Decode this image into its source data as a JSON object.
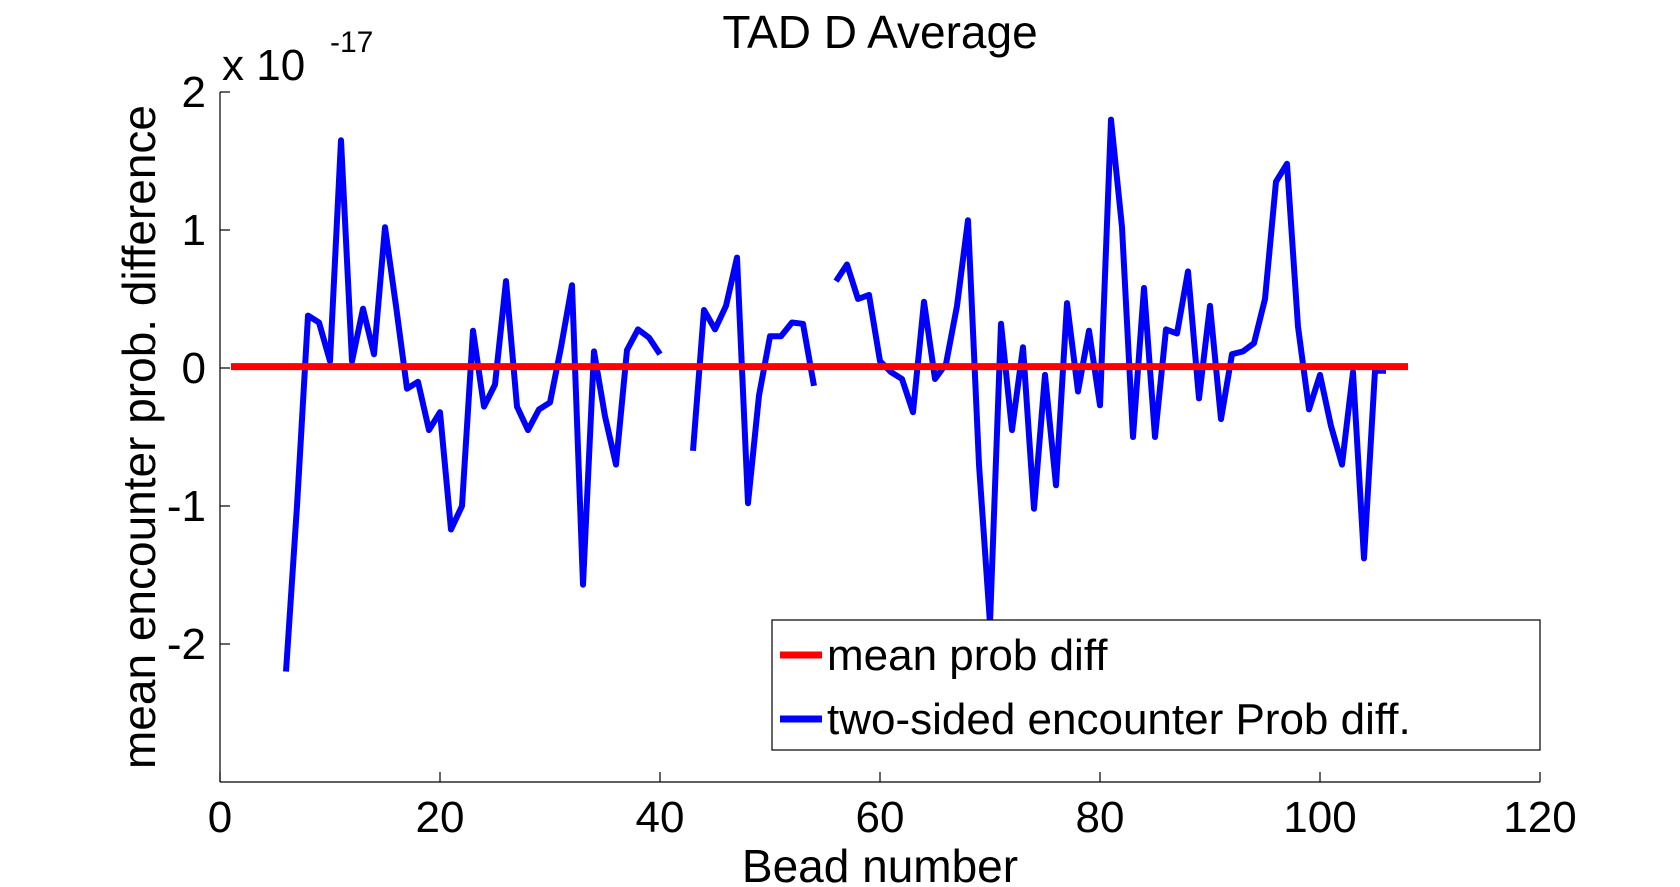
{
  "chart_data": {
    "type": "line",
    "title": "TAD D Average",
    "xlabel": "Bead number",
    "ylabel": "mean encounter prob. difference",
    "y_exponent_label": "x 10",
    "y_exponent_power": "-17",
    "xlim": [
      0,
      120
    ],
    "ylim": [
      -3,
      2
    ],
    "x_ticks": [
      0,
      20,
      40,
      60,
      80,
      100,
      120
    ],
    "x_tick_labels": [
      "0",
      "20",
      "40",
      "60",
      "80",
      "100",
      "120"
    ],
    "y_ticks": [
      2,
      1,
      0,
      -1,
      -2
    ],
    "y_tick_labels": [
      "2",
      "1",
      "0",
      "-1",
      "-2"
    ],
    "grid": false,
    "legend_position": "bottom-right",
    "series": [
      {
        "name": "mean prob diff",
        "color": "#ff0000",
        "x": [
          1,
          108
        ],
        "y": [
          0.01,
          0.01
        ]
      },
      {
        "name": "two-sided encounter Prob diff.",
        "color": "#0000ff",
        "x": [
          6,
          7,
          8,
          9,
          10,
          11,
          12,
          13,
          14,
          15,
          16,
          17,
          18,
          19,
          20,
          21,
          22,
          23,
          24,
          25,
          26,
          27,
          28,
          29,
          30,
          31,
          32,
          33,
          34,
          35,
          36,
          37,
          38,
          39,
          40,
          41,
          42,
          43,
          44,
          45,
          46,
          47,
          48,
          49,
          50,
          51,
          52,
          53,
          54,
          55,
          56,
          57,
          58,
          59,
          60,
          61,
          62,
          63,
          64,
          65,
          66,
          67,
          68,
          69,
          70,
          71,
          72,
          73,
          74,
          75,
          76,
          77,
          78,
          79,
          80,
          81,
          82,
          83,
          84,
          85,
          86,
          87,
          88,
          89,
          90,
          91,
          92,
          93,
          94,
          95,
          96,
          97,
          98,
          99,
          100,
          101,
          102,
          103,
          104,
          105,
          106
        ],
        "y": [
          -2.2,
          -1.0,
          0.38,
          0.33,
          0.05,
          1.65,
          0.05,
          0.43,
          0.1,
          1.02,
          0.45,
          -0.15,
          -0.1,
          -0.45,
          -0.32,
          -1.17,
          -1.0,
          0.27,
          -0.28,
          -0.12,
          0.63,
          -0.28,
          -0.45,
          -0.3,
          -0.25,
          0.15,
          0.6,
          -1.57,
          0.12,
          -0.35,
          -0.7,
          0.13,
          0.28,
          0.22,
          0.1,
          null,
          null,
          -0.6,
          0.42,
          0.28,
          0.45,
          0.8,
          -0.98,
          -0.2,
          0.23,
          0.23,
          0.33,
          0.32,
          -0.13,
          null,
          0.63,
          0.75,
          0.5,
          0.53,
          0.05,
          -0.03,
          -0.08,
          -0.32,
          0.48,
          -0.08,
          0.03,
          0.45,
          1.07,
          -0.7,
          -1.85,
          0.32,
          -0.45,
          0.15,
          -1.02,
          -0.05,
          -0.85,
          0.47,
          -0.17,
          0.27,
          -0.27,
          1.8,
          1.02,
          -0.5,
          0.58,
          -0.5,
          0.28,
          0.25,
          0.7,
          -0.22,
          0.45,
          -0.37,
          0.1,
          0.12,
          0.18,
          0.5,
          1.35,
          1.48,
          0.3,
          -0.3,
          -0.05,
          -0.42,
          -0.7,
          -0.03,
          -1.38,
          -0.02,
          -0.02
        ]
      }
    ]
  }
}
